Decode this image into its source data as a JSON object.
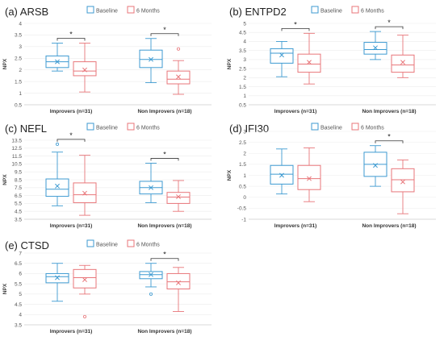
{
  "chart_data": [
    {
      "type": "box",
      "title": "(a) ARSB",
      "ylabel": "NPX",
      "ylim": [
        0.5,
        4
      ],
      "yticks": [
        0.5,
        1,
        1.5,
        2,
        2.5,
        3,
        3.5,
        4
      ],
      "categories": [
        "Improvers (n=31)",
        "Non Improvers (n=18)"
      ],
      "legend": [
        "Baseline",
        "6 Months"
      ],
      "legend_position": "top-center",
      "colors": {
        "baseline": "#3d9ad1",
        "six_months": "#e8767a"
      },
      "significance": [
        "*",
        "*"
      ],
      "series": [
        {
          "name": "Baseline",
          "boxes": [
            {
              "min": 1.95,
              "q1": 2.1,
              "median": 2.35,
              "q3": 2.6,
              "max": 3.15,
              "mean": 2.35,
              "outliers": []
            },
            {
              "min": 1.45,
              "q1": 2.1,
              "median": 2.45,
              "q3": 2.85,
              "max": 3.35,
              "mean": 2.45,
              "outliers": []
            }
          ]
        },
        {
          "name": "6 Months",
          "boxes": [
            {
              "min": 1.05,
              "q1": 1.75,
              "median": 1.95,
              "q3": 2.35,
              "max": 3.15,
              "mean": 2.0,
              "outliers": []
            },
            {
              "min": 0.95,
              "q1": 1.4,
              "median": 1.6,
              "q3": 1.95,
              "max": 2.4,
              "mean": 1.7,
              "outliers": [
                2.9
              ]
            }
          ]
        }
      ]
    },
    {
      "type": "box",
      "title": "(b) ENTPD2",
      "ylabel": "NPX",
      "ylim": [
        0.5,
        5
      ],
      "yticks": [
        0.5,
        1,
        1.5,
        2,
        2.5,
        3,
        3.5,
        4,
        4.5,
        5
      ],
      "categories": [
        "Improvers (n=31)",
        "Non Improvers (n=18)"
      ],
      "legend": [
        "Baseline",
        "6 Months"
      ],
      "legend_position": "top-center",
      "colors": {
        "baseline": "#3d9ad1",
        "six_months": "#e8767a"
      },
      "significance": [
        "*",
        "*"
      ],
      "series": [
        {
          "name": "Baseline",
          "boxes": [
            {
              "min": 2.05,
              "q1": 2.8,
              "median": 3.35,
              "q3": 3.6,
              "max": 4.0,
              "mean": 3.25,
              "outliers": []
            },
            {
              "min": 3.0,
              "q1": 3.3,
              "median": 3.55,
              "q3": 3.95,
              "max": 4.55,
              "mean": 3.65,
              "outliers": []
            }
          ]
        },
        {
          "name": "6 Months",
          "boxes": [
            {
              "min": 1.65,
              "q1": 2.3,
              "median": 2.75,
              "q3": 3.3,
              "max": 4.45,
              "mean": 2.85,
              "outliers": []
            },
            {
              "min": 2.0,
              "q1": 2.3,
              "median": 2.7,
              "q3": 3.25,
              "max": 4.35,
              "mean": 2.85,
              "outliers": []
            }
          ]
        }
      ]
    },
    {
      "type": "box",
      "title": "(c) NEFL",
      "ylabel": "NPX",
      "ylim": [
        3.5,
        13.5
      ],
      "yticks": [
        3.5,
        4.5,
        5.5,
        6.5,
        7.5,
        8.5,
        9.5,
        10.5,
        11.5,
        12.5,
        13.5
      ],
      "categories": [
        "Improvers (n=31)",
        "Non Improvers (n=18)"
      ],
      "legend": [
        "Baseline",
        "6 Months"
      ],
      "legend_position": "top-center",
      "colors": {
        "baseline": "#3d9ad1",
        "six_months": "#e8767a"
      },
      "significance": [
        "*",
        "*"
      ],
      "series": [
        {
          "name": "Baseline",
          "boxes": [
            {
              "min": 5.2,
              "q1": 6.4,
              "median": 7.3,
              "q3": 8.6,
              "max": 12.0,
              "mean": 7.7,
              "outliers": [
                13.0
              ]
            },
            {
              "min": 5.6,
              "q1": 6.7,
              "median": 7.5,
              "q3": 8.3,
              "max": 10.6,
              "mean": 7.5,
              "outliers": []
            }
          ]
        },
        {
          "name": "6 Months",
          "boxes": [
            {
              "min": 4.0,
              "q1": 5.6,
              "median": 6.6,
              "q3": 8.1,
              "max": 11.6,
              "mean": 6.8,
              "outliers": []
            },
            {
              "min": 4.5,
              "q1": 5.5,
              "median": 6.3,
              "q3": 6.9,
              "max": 8.4,
              "mean": 6.35,
              "outliers": []
            }
          ]
        }
      ]
    },
    {
      "type": "box",
      "title": "(d) IFI30",
      "ylabel": "NPX",
      "ylim": [
        -1,
        3
      ],
      "yticks": [
        -1,
        -0.5,
        0,
        0.5,
        1,
        1.5,
        2,
        2.5,
        3
      ],
      "categories": [
        "Improvers (n=31)",
        "Non Improvers (n=18)"
      ],
      "legend": [
        "Baseline",
        "6 Months"
      ],
      "legend_position": "top-center",
      "colors": {
        "baseline": "#3d9ad1",
        "six_months": "#e8767a"
      },
      "significance": [
        "",
        "*"
      ],
      "series": [
        {
          "name": "Baseline",
          "boxes": [
            {
              "min": 0.15,
              "q1": 0.6,
              "median": 1.05,
              "q3": 1.45,
              "max": 2.2,
              "mean": 1.0,
              "outliers": []
            },
            {
              "min": 0.5,
              "q1": 0.95,
              "median": 1.5,
              "q3": 2.05,
              "max": 2.35,
              "mean": 1.45,
              "outliers": []
            }
          ]
        },
        {
          "name": "6 Months",
          "boxes": [
            {
              "min": -0.2,
              "q1": 0.35,
              "median": 0.85,
              "q3": 1.45,
              "max": 2.25,
              "mean": 0.85,
              "outliers": []
            },
            {
              "min": -0.75,
              "q1": 0.25,
              "median": 0.8,
              "q3": 1.3,
              "max": 1.7,
              "mean": 0.7,
              "outliers": []
            }
          ]
        }
      ]
    },
    {
      "type": "box",
      "title": "(e) CTSD",
      "ylabel": "NPX",
      "ylim": [
        3.5,
        7
      ],
      "yticks": [
        3.5,
        4,
        4.5,
        5,
        5.5,
        6,
        6.5,
        7
      ],
      "categories": [
        "Improvers (n=31)",
        "Non Improvers (n=18)"
      ],
      "legend": [
        "Baseline",
        "6 Months"
      ],
      "legend_position": "top-center",
      "colors": {
        "baseline": "#3d9ad1",
        "six_months": "#e8767a"
      },
      "significance": [
        "",
        "*"
      ],
      "series": [
        {
          "name": "Baseline",
          "boxes": [
            {
              "min": 4.65,
              "q1": 5.55,
              "median": 5.85,
              "q3": 6.0,
              "max": 6.5,
              "mean": 5.8,
              "outliers": []
            },
            {
              "min": 5.35,
              "q1": 5.75,
              "median": 5.95,
              "q3": 6.1,
              "max": 6.5,
              "mean": 5.95,
              "outliers": [
                5.0
              ]
            }
          ]
        },
        {
          "name": "6 Months",
          "boxes": [
            {
              "min": 5.0,
              "q1": 5.3,
              "median": 5.8,
              "q3": 6.2,
              "max": 6.4,
              "mean": 5.7,
              "outliers": [
                3.9
              ]
            },
            {
              "min": 4.15,
              "q1": 5.25,
              "median": 5.6,
              "q3": 6.0,
              "max": 6.3,
              "mean": 5.55,
              "outliers": []
            }
          ]
        }
      ]
    }
  ]
}
